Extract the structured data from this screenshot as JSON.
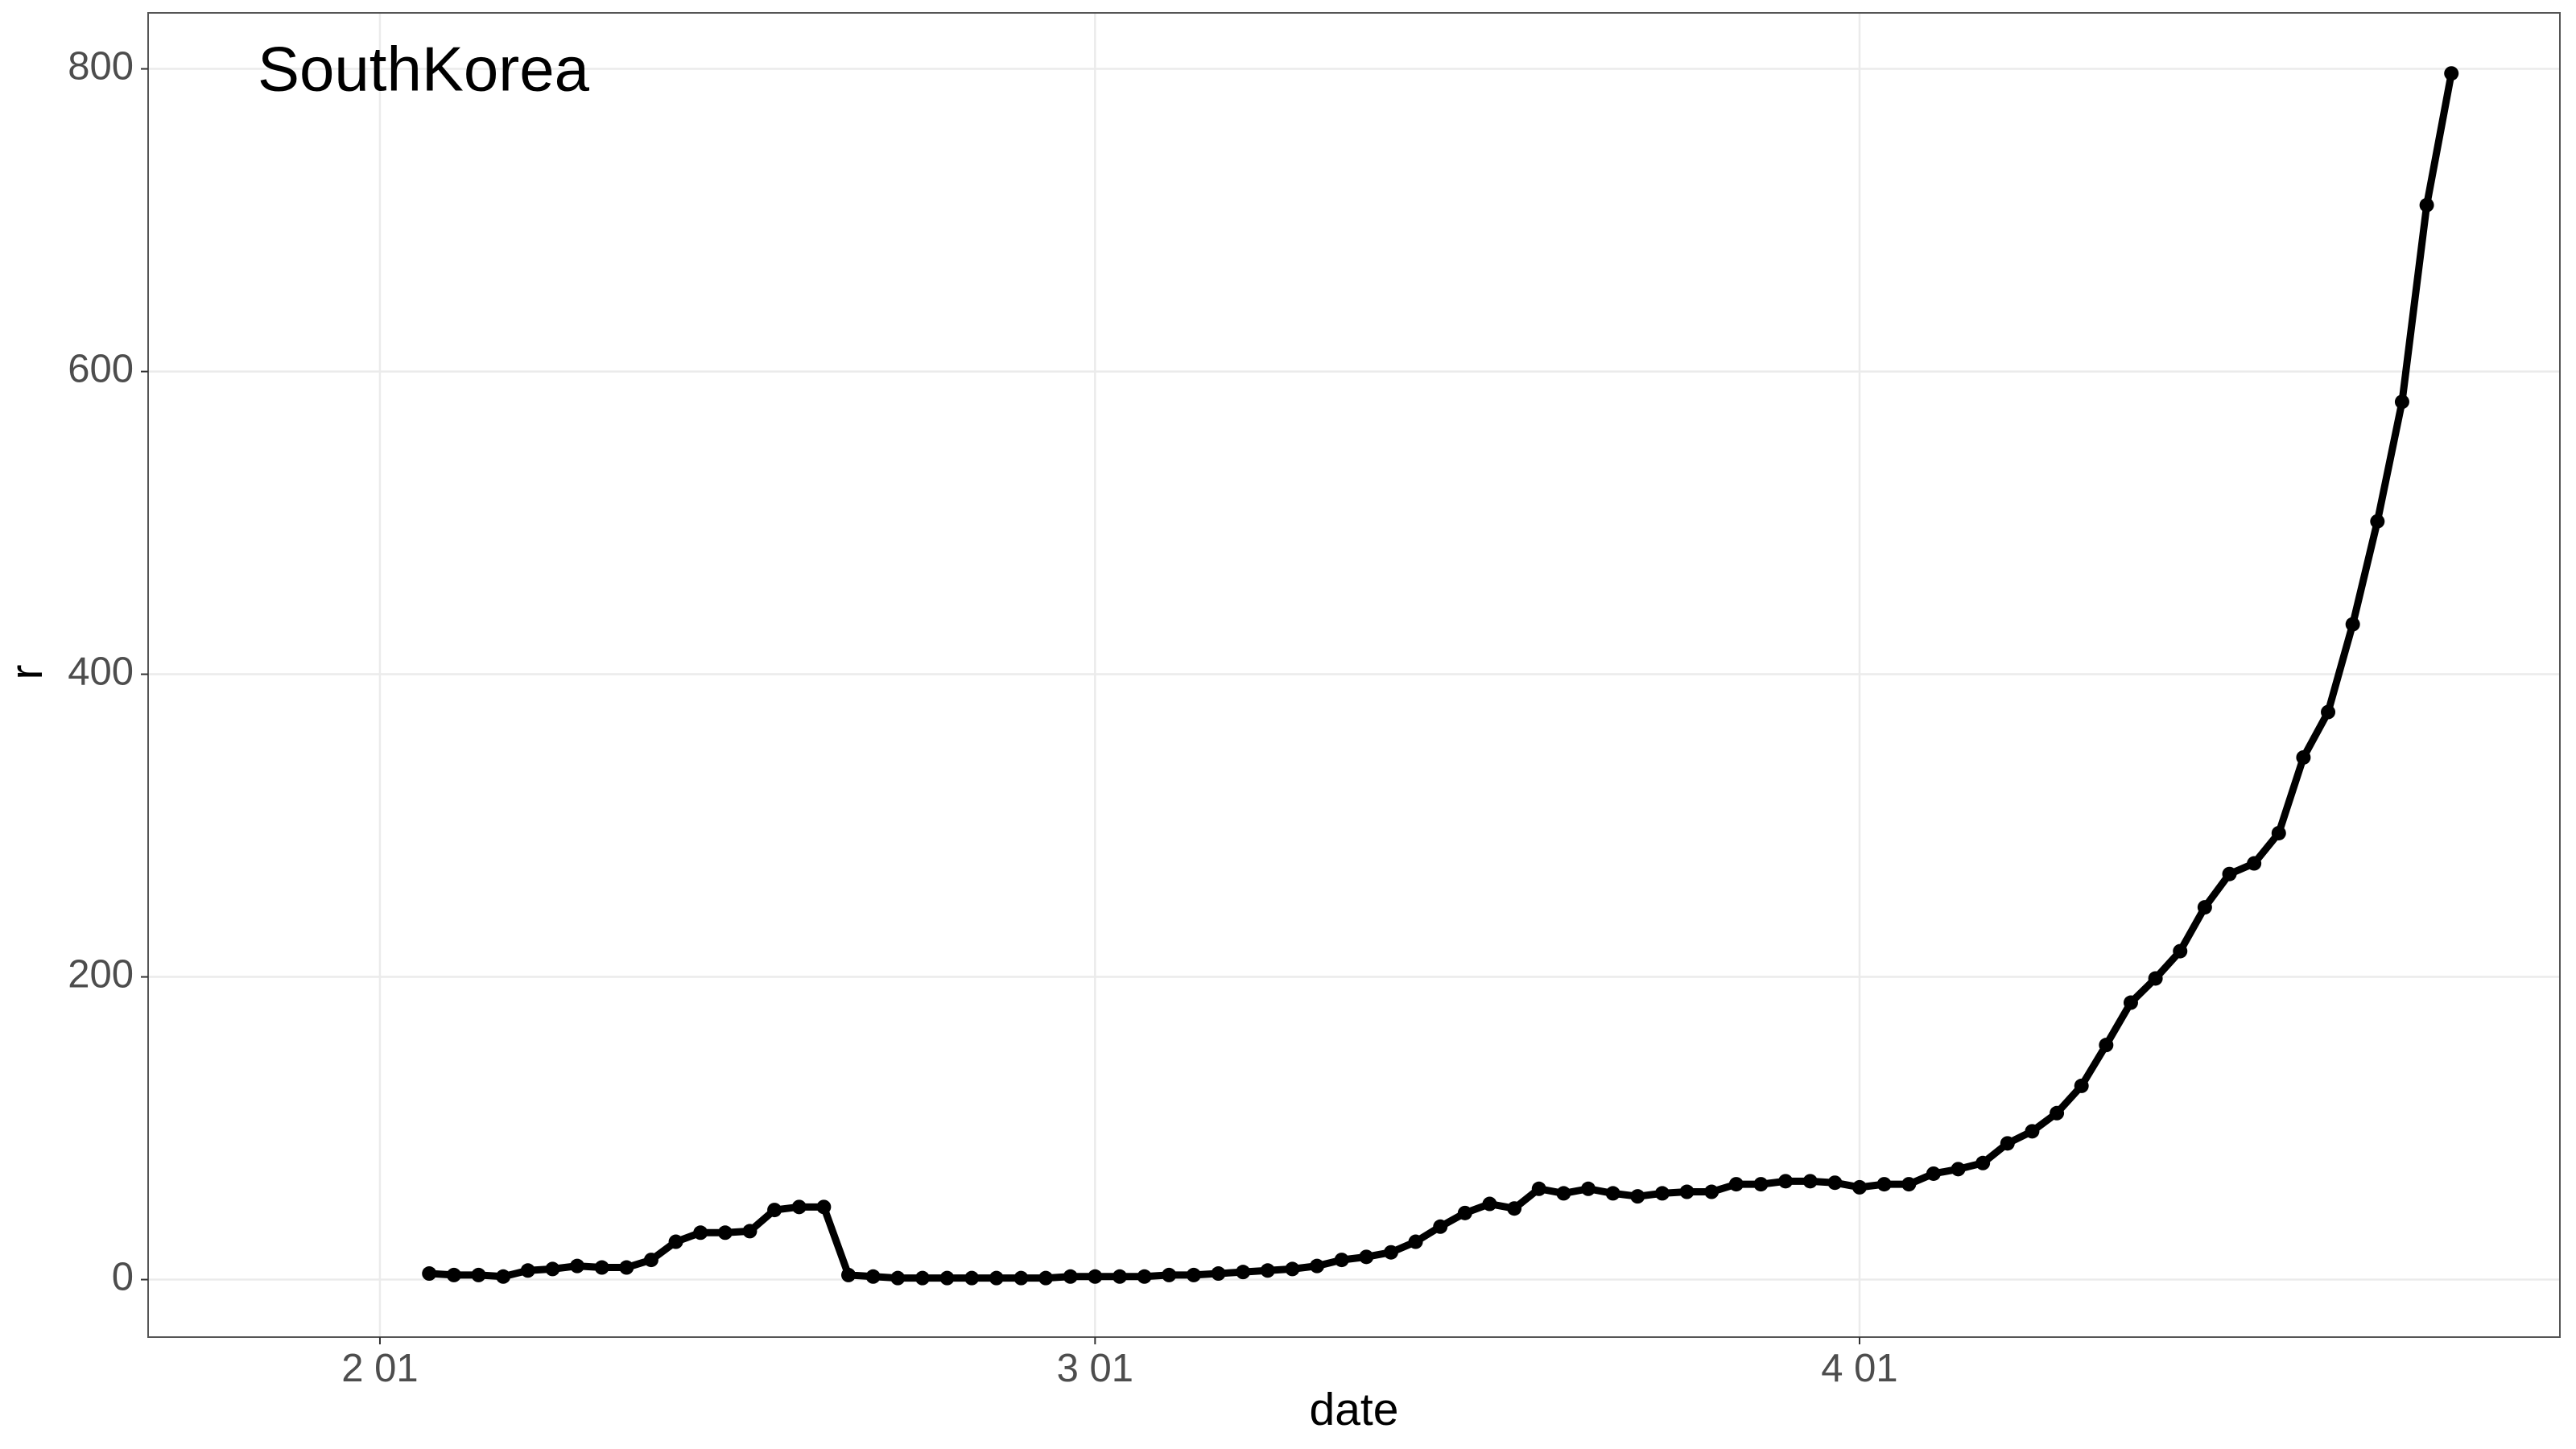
{
  "chart_data": {
    "type": "line",
    "annotation": "SouthKorea",
    "x_label": "date",
    "y_label": "r",
    "x": [
      2,
      3,
      4,
      5,
      6,
      7,
      8,
      9,
      10,
      11,
      12,
      13,
      14,
      15,
      16,
      17,
      18,
      19,
      20,
      21,
      22,
      23,
      24,
      25,
      26,
      27,
      28,
      29,
      30,
      31,
      32,
      33,
      34,
      35,
      36,
      37,
      38,
      39,
      40,
      41,
      42,
      43,
      44,
      45,
      46,
      47,
      48,
      49,
      50,
      51,
      52,
      53,
      54,
      55,
      56,
      57,
      58,
      59,
      60,
      61,
      62,
      63,
      64,
      65,
      66,
      67,
      68,
      69,
      70,
      71,
      72,
      73,
      74,
      75,
      76,
      77,
      78,
      79,
      80,
      81,
      82,
      83,
      84
    ],
    "series": [
      {
        "name": "SouthKorea",
        "color": "#000000",
        "values": [
          4,
          3,
          3,
          2,
          6,
          7,
          9,
          8,
          8,
          13,
          25,
          31,
          31,
          32,
          46,
          48,
          48,
          3,
          2,
          1,
          1,
          1,
          1,
          1,
          1,
          1,
          2,
          2,
          2,
          2,
          3,
          3,
          4,
          5,
          6,
          7,
          9,
          13,
          15,
          18,
          25,
          35,
          44,
          50,
          47,
          60,
          57,
          60,
          57,
          55,
          57,
          58,
          58,
          63,
          63,
          65,
          65,
          64,
          61,
          63,
          63,
          70,
          73,
          77,
          90,
          98,
          110,
          128,
          155,
          183,
          199,
          217,
          246,
          268,
          275,
          295,
          345,
          375,
          433,
          501,
          580,
          710,
          797
        ]
      }
    ],
    "xlim": [
      -9.4,
      88.4
    ],
    "xticks": [
      {
        "value": 0,
        "label": "2 01"
      },
      {
        "value": 29,
        "label": "3 01"
      },
      {
        "value": 60,
        "label": "4 01"
      }
    ],
    "ylim": [
      -38,
      837
    ],
    "yticks": [
      0,
      200,
      400,
      600,
      800
    ],
    "grid": true
  }
}
